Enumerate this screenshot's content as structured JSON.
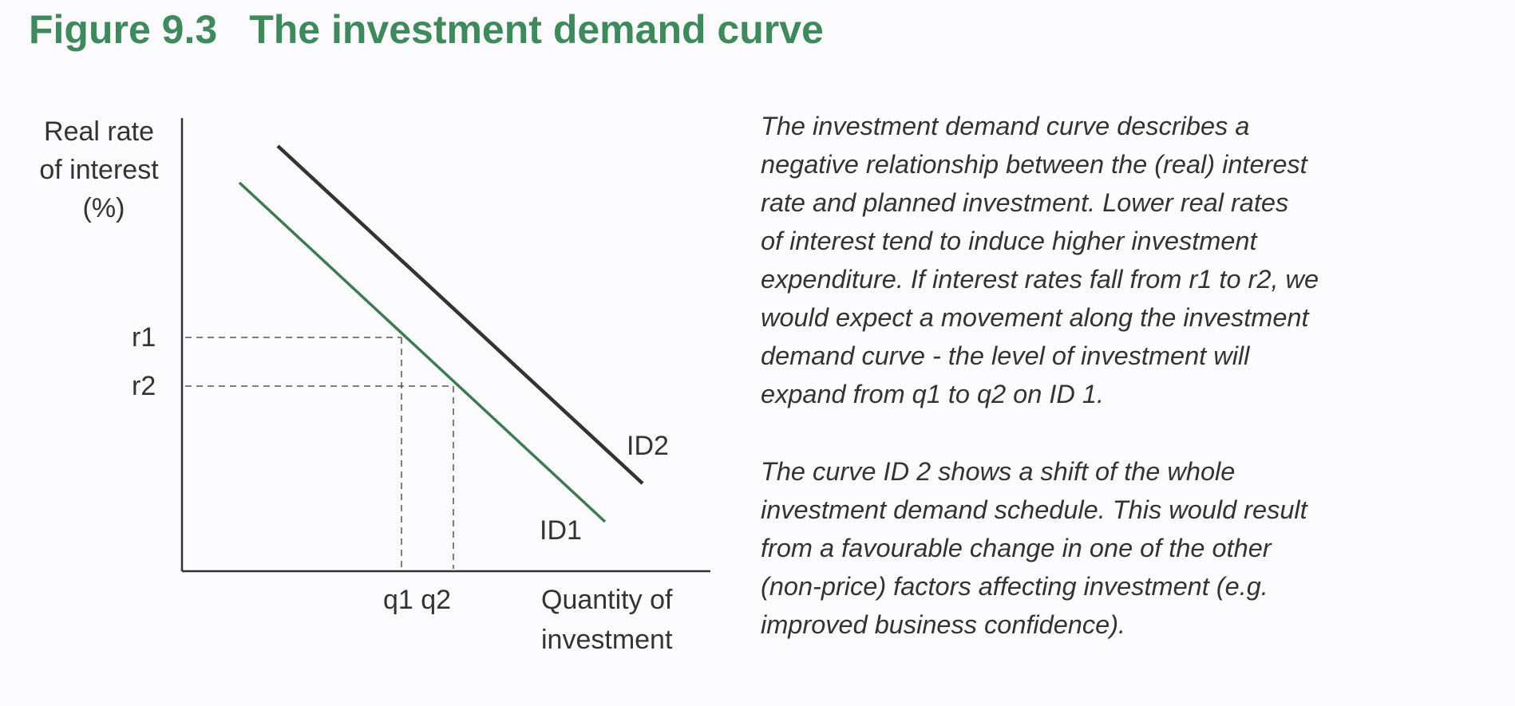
{
  "figure": {
    "number": "Figure 9.3",
    "title": "The investment demand curve"
  },
  "diagram": {
    "y_axis_label": [
      "Real rate",
      "of interest",
      "(%)"
    ],
    "x_axis_label": [
      "Quantity of",
      "investment"
    ],
    "rate_labels": [
      "r1",
      "r2"
    ],
    "quantity_labels": "q1 q2",
    "curves": [
      {
        "name": "ID1",
        "color": "#3f7a55"
      },
      {
        "name": "ID2",
        "color": "#333333"
      }
    ]
  },
  "description": {
    "paragraph_1": [
      "The investment demand curve describes a",
      "negative relationship between the (real) interest",
      "rate and planned investment. Lower real rates",
      "of interest tend to induce higher investment",
      "expenditure.  If interest rates fall from r1 to r2, we",
      "would expect a movement along the investment",
      "demand curve - the level of investment will",
      "expand from q1 to q2 on ID 1."
    ],
    "paragraph_2": [
      "The curve ID 2 shows a shift of the whole",
      "investment demand schedule. This would result",
      "from a favourable change in one of the other",
      "(non-price) factors affecting investment (e.g.",
      "improved business confidence)."
    ]
  }
}
